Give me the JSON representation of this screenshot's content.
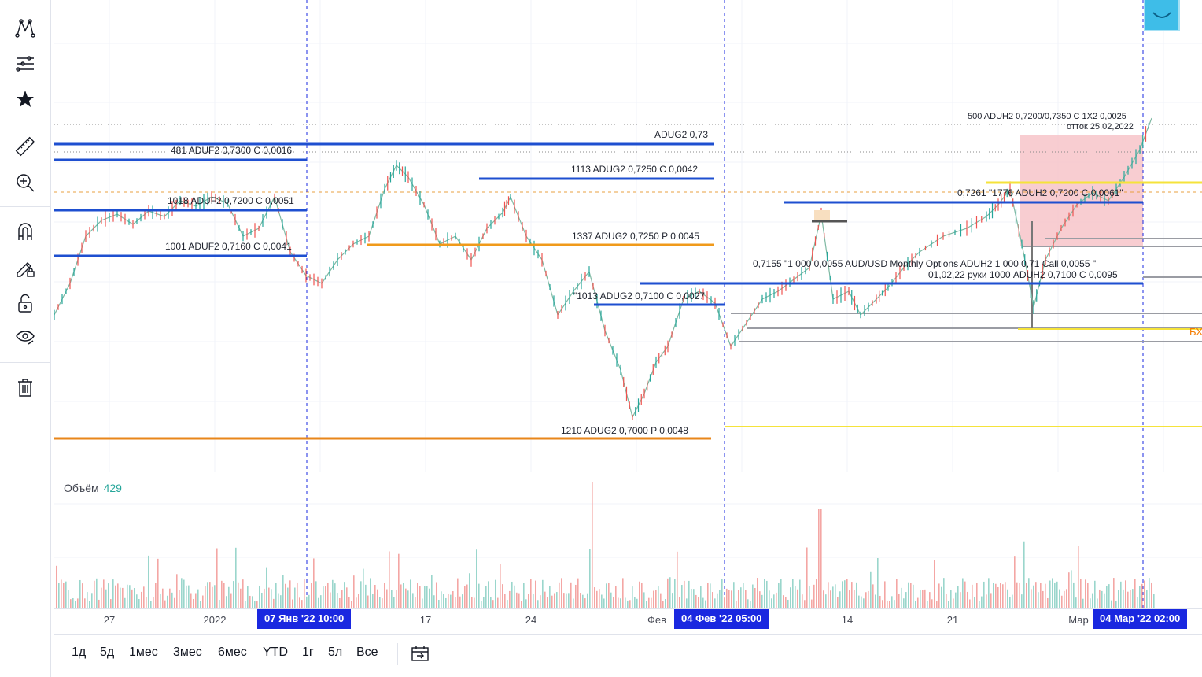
{
  "toolbar": {
    "tools": [
      "pattern-tool-icon",
      "indicators-tool-icon",
      "favorite-star-icon",
      "ruler-icon",
      "zoom-in-icon",
      "magnet-icon",
      "lock-drawing-icon",
      "lock-icon",
      "eye-icon",
      "trash-icon"
    ]
  },
  "levels": {
    "aduf2_0730": "481 ADUF2 0,7300 C 0,0016",
    "adug2_073": "ADUG2 0,73",
    "adug2_07250c": "1113 ADUG2 0,7250 C 0,0042",
    "aduf2_07200c": "1018 ADUF2 0,7200 C 0,0051",
    "adug2_07250p": "1337 ADUG2 0,7250 P 0,0045",
    "aduf2_07160c": "1001 ADUF2 0,7160 C 0,0041",
    "adug2_07100c": "\"1013 ADUG2 0,7100 C 0,0027",
    "adug2_07000p": "1210 ADUG2 0,7000 P  0,0048",
    "aduh2_top1": "500 ADUH2 0,7200/0,7350 C 1X2 0,0025",
    "aduh2_top2": "отток 25,02,2022",
    "aduh2_07261": "0,7261 \"1776 ADUH2 0,7200 C 0,0061\"",
    "aduh2_07155a": "0,7155 \"1 000 0,0055 AUD/USD Monthly Options ADUH2  1 000 0,71 Call 0,0055 \"",
    "aduh2_07155b": "01,02,22 руки 1000  ADUH2 0,7100 C 0,0095"
  },
  "right_edge_label": "БХ",
  "volume": {
    "name": "Объём",
    "value": "429"
  },
  "time_axis": {
    "ticks": [
      "27",
      "2022",
      "17",
      "24",
      "Фев",
      "14",
      "21",
      "Мар"
    ],
    "badges": [
      "07 Янв '22   10:00",
      "04 Фев '22   05:00",
      "04 Мар '22   02:00"
    ]
  },
  "ranges": [
    "1д",
    "5д",
    "1мес",
    "3мес",
    "6мес",
    "YTD",
    "1г",
    "5л",
    "Все"
  ],
  "colors": {
    "level_blue": "#1e4fd0",
    "level_orange": "#f09a1a",
    "level_yellow": "#f5e33b",
    "gray": "#9a9ca3",
    "up": "#26a69a",
    "down": "#ef5350",
    "badge": "#1a28e0",
    "zone": "#f7c4c9"
  }
}
